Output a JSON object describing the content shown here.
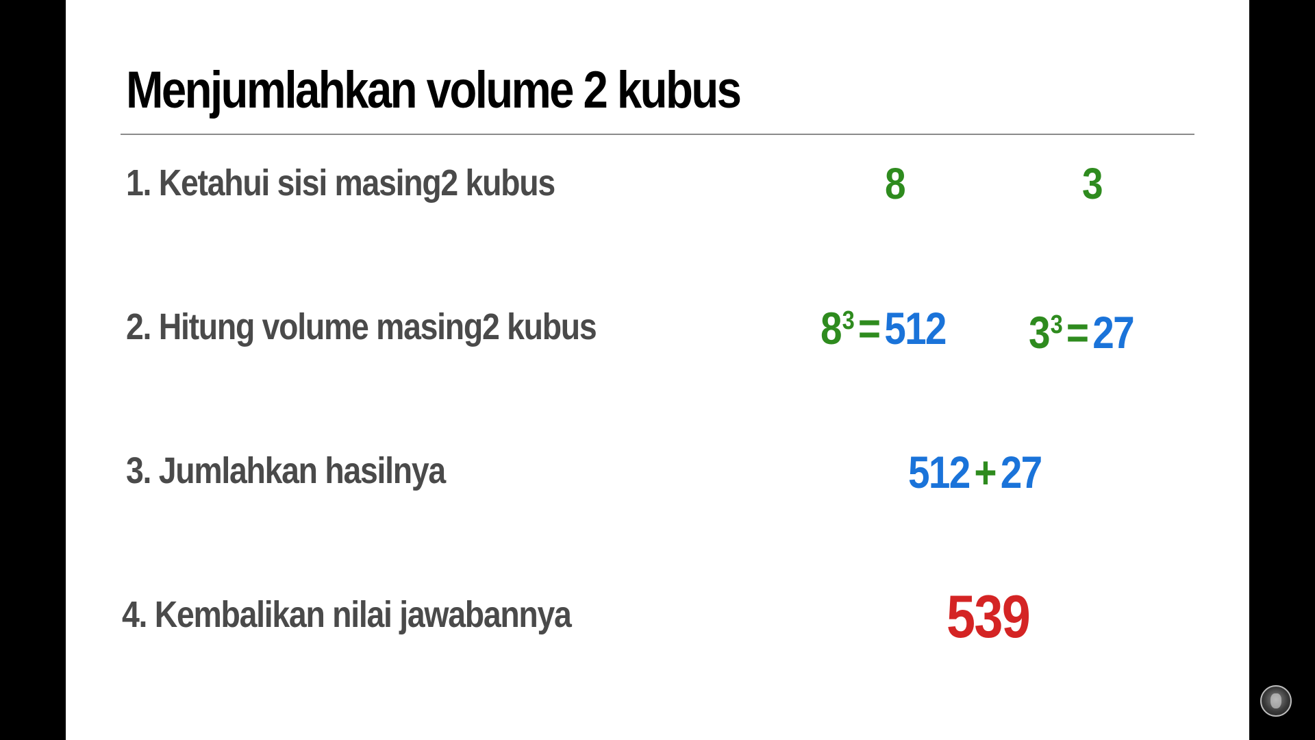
{
  "slide": {
    "title": "Menjumlahkan volume 2 kubus",
    "steps": [
      {
        "label": "1. Ketahui sisi masing2 kubus"
      },
      {
        "label": "2. Hitung volume masing2 kubus"
      },
      {
        "label": "3. Jumlahkan hasilnya"
      },
      {
        "label": "4. Kembalikan nilai jawabannya"
      }
    ],
    "step1": {
      "side_a": "8",
      "side_b": "3"
    },
    "step2": {
      "a_base": "8",
      "a_exp": "3",
      "a_eq": "=",
      "a_result": "512",
      "b_base": "3",
      "b_exp": "3",
      "b_eq": "=",
      "b_result": "27"
    },
    "step3": {
      "left": "512",
      "op": "+",
      "right": "27"
    },
    "step4": {
      "answer": "539"
    }
  },
  "colors": {
    "green": "#2e8b1e",
    "blue": "#1a73d9",
    "red": "#d42424",
    "label_gray": "#4a4a4a"
  },
  "icons": {
    "corner_logo": "channel-logo-icon"
  }
}
